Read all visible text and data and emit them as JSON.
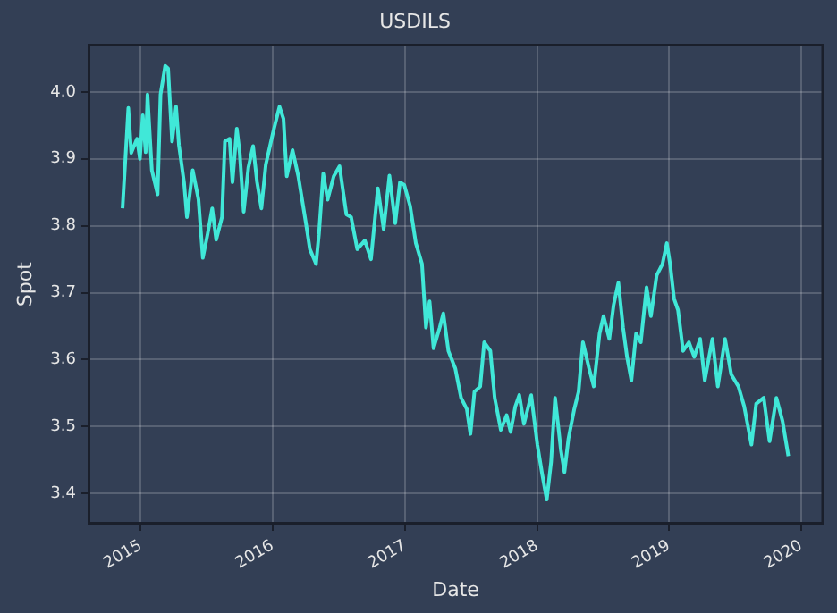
{
  "chart_data": {
    "type": "line",
    "title": "USDILS",
    "xlabel": "Date",
    "ylabel": "Spot",
    "x": [
      "2014-11-12",
      "2014-11-28",
      "2014-12-06",
      "2014-12-22",
      "2014-12-30",
      "2015-01-07",
      "2015-01-15",
      "2015-01-20",
      "2015-02-01",
      "2015-02-17",
      "2015-02-25",
      "2015-03-10",
      "2015-03-18",
      "2015-03-29",
      "2015-04-09",
      "2015-04-17",
      "2015-05-01",
      "2015-05-09",
      "2015-05-25",
      "2015-06-10",
      "2015-06-22",
      "2015-07-05",
      "2015-07-18",
      "2015-07-29",
      "2015-08-14",
      "2015-08-22",
      "2015-09-04",
      "2015-09-12",
      "2015-09-24",
      "2015-10-02",
      "2015-10-13",
      "2015-10-26",
      "2015-11-08",
      "2015-11-19",
      "2015-12-01",
      "2015-12-13",
      "2016-01-02",
      "2016-01-20",
      "2016-01-31",
      "2016-02-09",
      "2016-02-25",
      "2016-03-12",
      "2016-04-02",
      "2016-04-13",
      "2016-04-30",
      "2016-05-08",
      "2016-05-20",
      "2016-06-01",
      "2016-06-18",
      "2016-07-04",
      "2016-07-23",
      "2016-08-05",
      "2016-08-22",
      "2016-09-12",
      "2016-09-29",
      "2016-10-18",
      "2016-11-03",
      "2016-11-19",
      "2016-12-05",
      "2016-12-18",
      "2016-12-30",
      "2017-01-15",
      "2017-01-31",
      "2017-02-17",
      "2017-02-28",
      "2017-03-10",
      "2017-03-21",
      "2017-04-07",
      "2017-04-17",
      "2017-05-01",
      "2017-05-20",
      "2017-06-05",
      "2017-06-21",
      "2017-07-01",
      "2017-07-12",
      "2017-07-28",
      "2017-08-08",
      "2017-08-25",
      "2017-09-06",
      "2017-09-23",
      "2017-10-09",
      "2017-10-20",
      "2017-11-02",
      "2017-11-13",
      "2017-11-26",
      "2017-12-16",
      "2018-01-02",
      "2018-01-15",
      "2018-01-28",
      "2018-02-09",
      "2018-02-20",
      "2018-03-08",
      "2018-03-18",
      "2018-03-29",
      "2018-04-14",
      "2018-04-26",
      "2018-05-08",
      "2018-05-25",
      "2018-06-07",
      "2018-06-23",
      "2018-07-04",
      "2018-07-20",
      "2018-08-01",
      "2018-08-14",
      "2018-08-27",
      "2018-09-07",
      "2018-09-19",
      "2018-10-02",
      "2018-10-15",
      "2018-10-31",
      "2018-11-12",
      "2018-11-28",
      "2018-12-14",
      "2018-12-26",
      "2019-01-04",
      "2019-01-15",
      "2019-01-26",
      "2019-02-09",
      "2019-02-25",
      "2019-03-12",
      "2019-03-28",
      "2019-04-10",
      "2019-05-01",
      "2019-05-16",
      "2019-06-05",
      "2019-06-22",
      "2019-07-12",
      "2019-07-28",
      "2019-08-17",
      "2019-08-30",
      "2019-09-20",
      "2019-10-06",
      "2019-10-25",
      "2019-11-11",
      "2019-11-27"
    ],
    "series": [
      {
        "color": "#40e8d8",
        "values": [
          3.826,
          3.976,
          3.909,
          3.93,
          3.9,
          3.965,
          3.91,
          3.996,
          3.883,
          3.847,
          3.996,
          4.039,
          4.035,
          3.926,
          3.978,
          3.92,
          3.865,
          3.813,
          3.883,
          3.839,
          3.752,
          3.787,
          3.826,
          3.779,
          3.813,
          3.926,
          3.93,
          3.865,
          3.945,
          3.909,
          3.821,
          3.887,
          3.919,
          3.865,
          3.826,
          3.891,
          3.939,
          3.978,
          3.96,
          3.874,
          3.913,
          3.874,
          3.804,
          3.765,
          3.743,
          3.787,
          3.878,
          3.839,
          3.874,
          3.889,
          3.817,
          3.813,
          3.765,
          3.778,
          3.75,
          3.856,
          3.795,
          3.875,
          3.804,
          3.865,
          3.861,
          3.83,
          3.774,
          3.743,
          3.648,
          3.687,
          3.617,
          3.648,
          3.669,
          3.613,
          3.587,
          3.543,
          3.526,
          3.489,
          3.552,
          3.56,
          3.626,
          3.613,
          3.543,
          3.495,
          3.517,
          3.492,
          3.53,
          3.547,
          3.504,
          3.547,
          3.473,
          3.43,
          3.391,
          3.447,
          3.543,
          3.465,
          3.432,
          3.482,
          3.526,
          3.552,
          3.626,
          3.587,
          3.56,
          3.639,
          3.665,
          3.631,
          3.682,
          3.715,
          3.648,
          3.604,
          3.569,
          3.639,
          3.626,
          3.708,
          3.665,
          3.726,
          3.743,
          3.774,
          3.743,
          3.691,
          3.674,
          3.613,
          3.626,
          3.604,
          3.631,
          3.569,
          3.631,
          3.56,
          3.631,
          3.578,
          3.56,
          3.53,
          3.473,
          3.534,
          3.543,
          3.478,
          3.543,
          3.508,
          3.456
        ]
      }
    ],
    "xlim": [
      "2014-08-10",
      "2020-03-01"
    ],
    "xticks": [
      {
        "value": "2015-01-01",
        "label": "2015"
      },
      {
        "value": "2016-01-01",
        "label": "2016"
      },
      {
        "value": "2017-01-01",
        "label": "2017"
      },
      {
        "value": "2018-01-01",
        "label": "2018"
      },
      {
        "value": "2019-01-01",
        "label": "2019"
      },
      {
        "value": "2020-01-01",
        "label": "2020"
      }
    ],
    "ylim": [
      3.355,
      4.07
    ],
    "yticks": [
      3.4,
      3.5,
      3.6,
      3.7,
      3.8,
      3.9,
      {
        "value": 4,
        "label": "4.0"
      }
    ],
    "grid": true
  }
}
